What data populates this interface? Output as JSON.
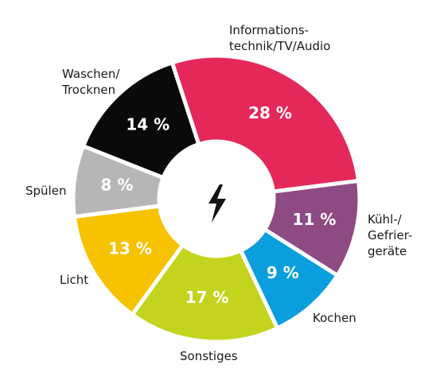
{
  "chart_data": {
    "type": "donut",
    "categories": [
      "Informations-\ntechnik/TV/Audio",
      "Kühl-/\nGefrier-\ngeräte",
      "Kochen",
      "Sonstiges",
      "Licht",
      "Spülen",
      "Waschen/\nTrocknen"
    ],
    "values": [
      28,
      11,
      9,
      17,
      13,
      8,
      14
    ],
    "value_labels": [
      "28 %",
      "11 %",
      "9 %",
      "17 %",
      "13 %",
      "8 %",
      "14 %"
    ],
    "colors": [
      "#e4285a",
      "#8e4a83",
      "#0a9fdc",
      "#c4d31d",
      "#f7c200",
      "#b6b6b6",
      "#0a0a0a"
    ]
  }
}
